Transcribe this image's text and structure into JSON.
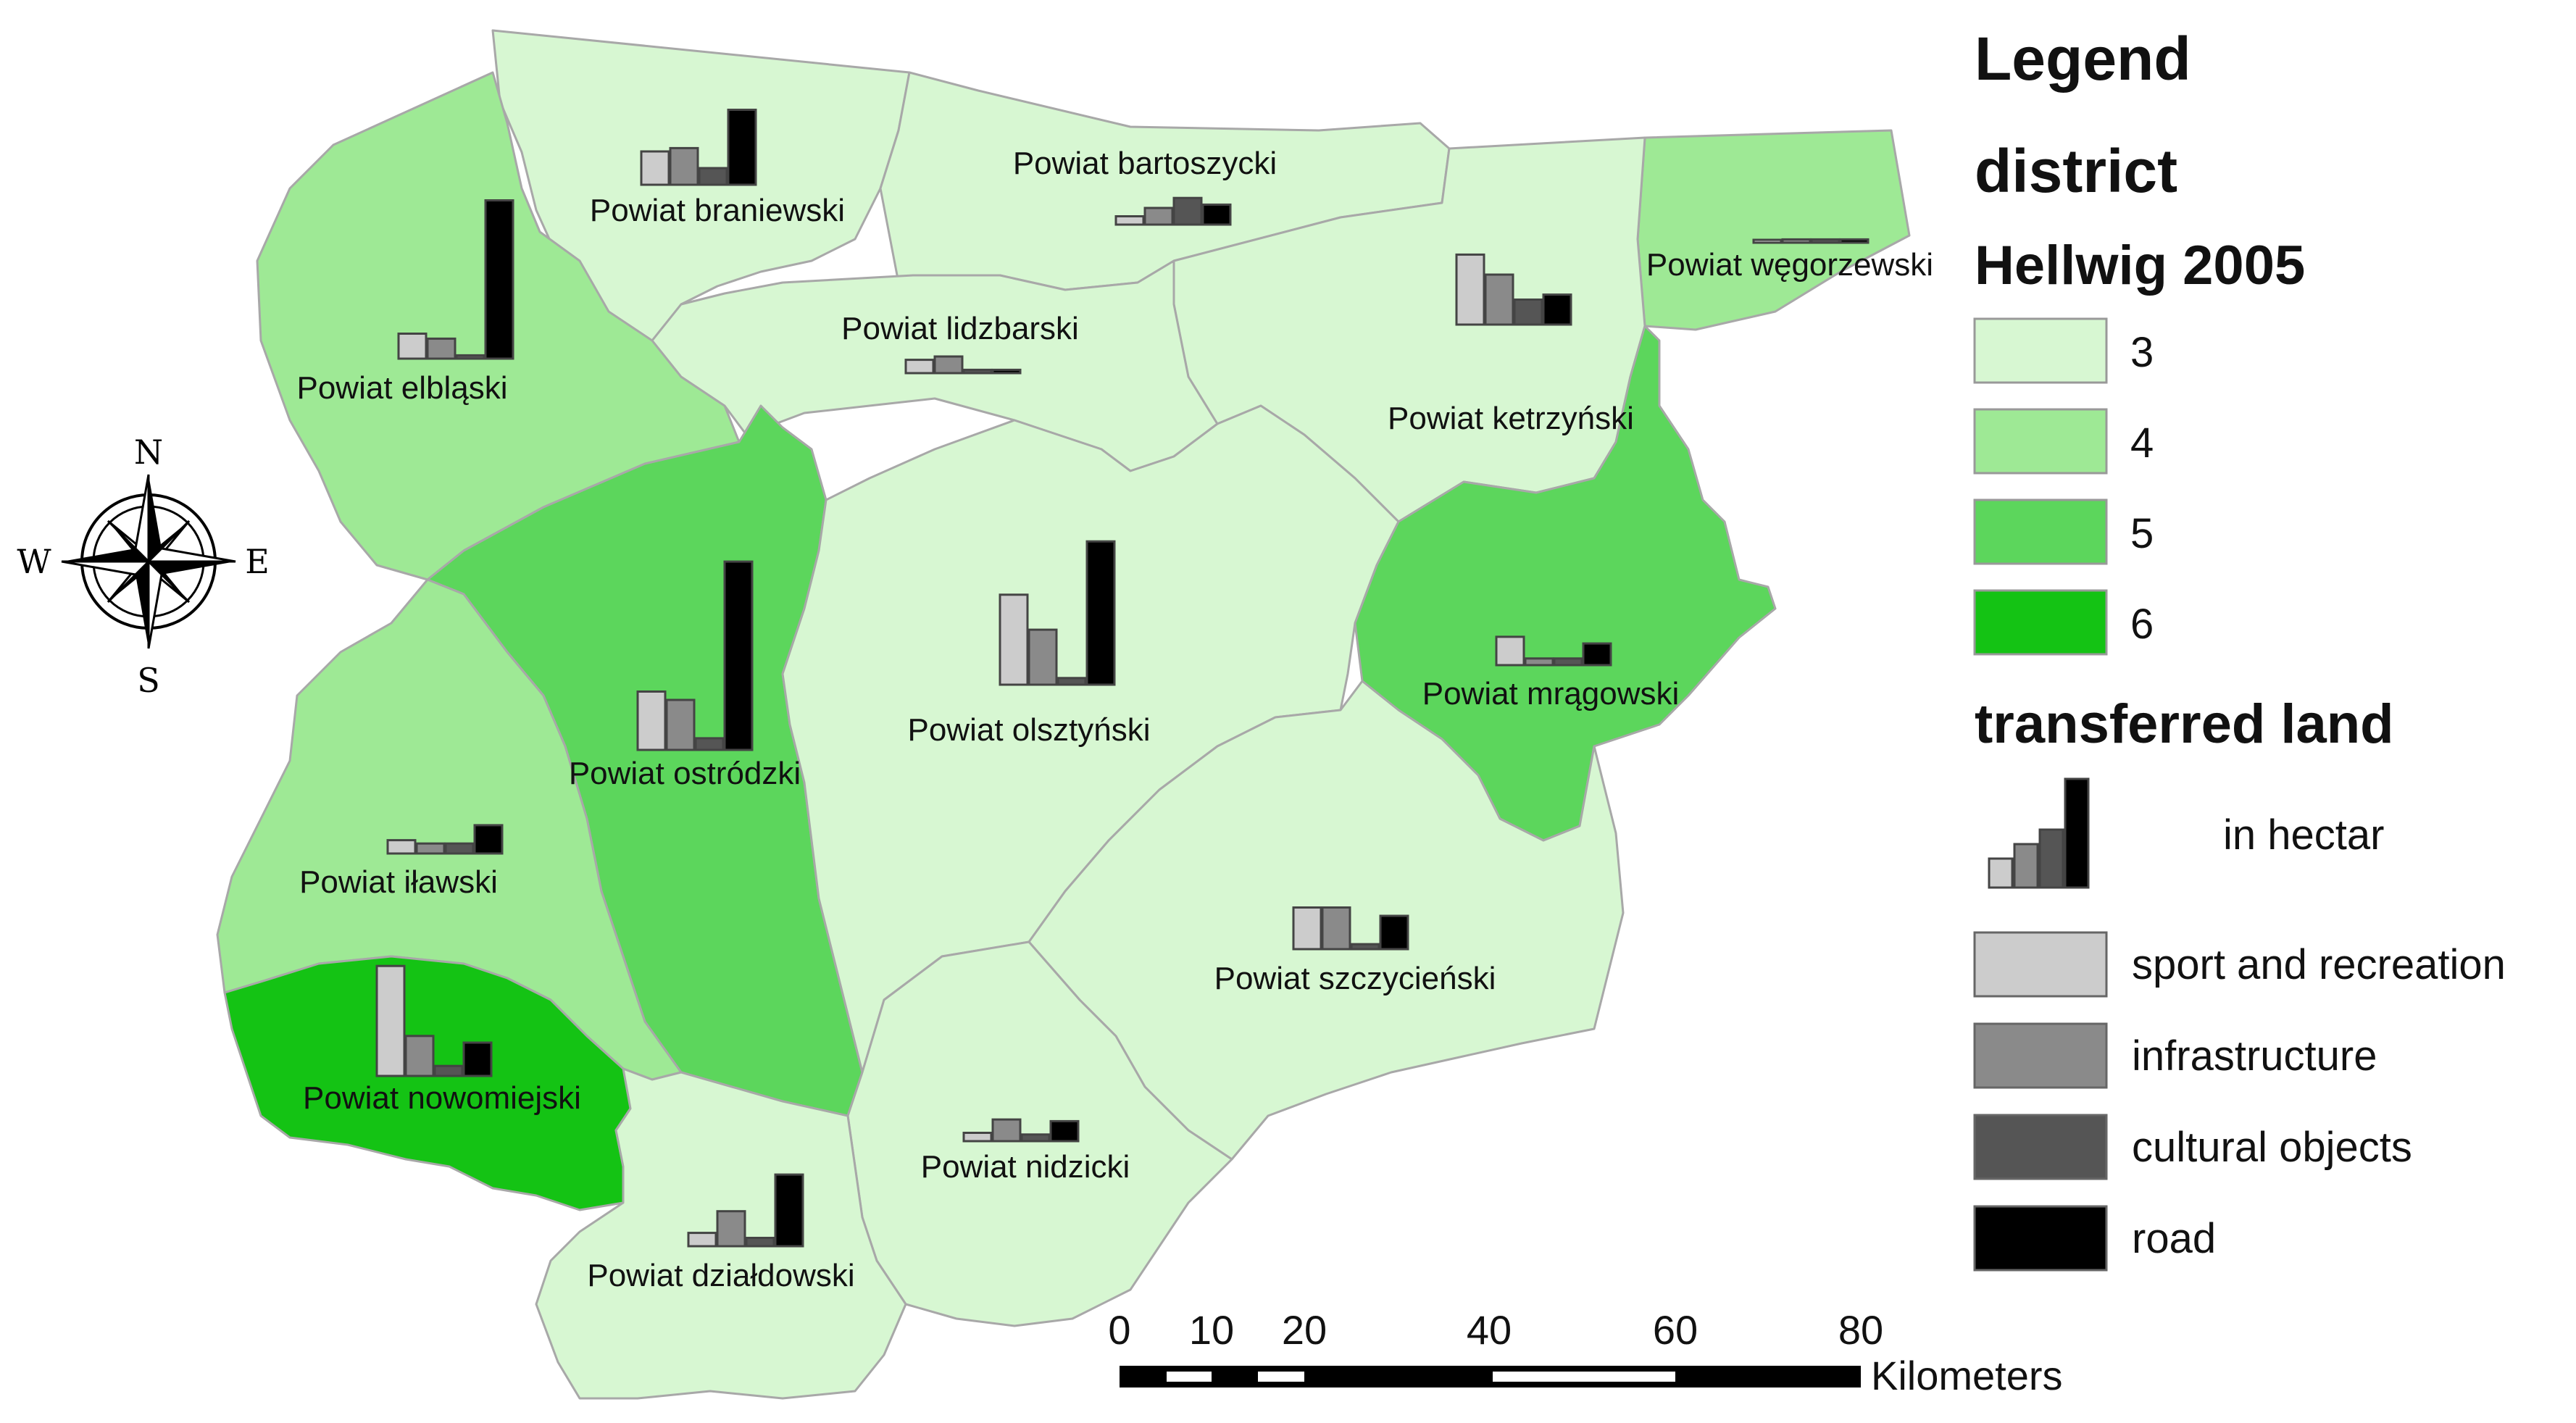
{
  "legend": {
    "title": "Legend",
    "district_title": "district",
    "hellwig_title": "Hellwig 2005",
    "classes": [
      {
        "label": "3",
        "color": "#d7f7d2"
      },
      {
        "label": "4",
        "color": "#9ee995"
      },
      {
        "label": "5",
        "color": "#5cd65c"
      },
      {
        "label": "6",
        "color": "#14c314"
      }
    ],
    "transferred_title": "transferred land",
    "unit_label": "in hectar",
    "categories": [
      {
        "label": "sport and  recreation",
        "color": "#cccccc"
      },
      {
        "label": "infrastructure",
        "color": "#8a8a8a"
      },
      {
        "label": "cultural objects",
        "color": "#555555"
      },
      {
        "label": "road",
        "color": "#000000"
      }
    ]
  },
  "compass": {
    "n": "N",
    "s": "S",
    "e": "E",
    "w": "W"
  },
  "scale_bar": {
    "ticks": [
      "0",
      "10",
      "20",
      "40",
      "60",
      "80"
    ],
    "unit": "Kilometers"
  },
  "districts": [
    {
      "id": "braniewski",
      "label": "Powiat braniewski",
      "class": 3
    },
    {
      "id": "bartoszycki",
      "label": "Powiat bartoszycki",
      "class": 3
    },
    {
      "id": "wegorzewski",
      "label": "Powiat węgorzewski",
      "class": 4
    },
    {
      "id": "elblaski",
      "label": "Powiat elbląski",
      "class": 4
    },
    {
      "id": "lidzbarski",
      "label": "Powiat lidzbarski",
      "class": 3
    },
    {
      "id": "ketrzynski",
      "label": "Powiat ketrzyński",
      "class": 3
    },
    {
      "id": "ostrodzki",
      "label": "Powiat ostródzki",
      "class": 5
    },
    {
      "id": "olsztynski",
      "label": "Powiat olsztyński",
      "class": 3
    },
    {
      "id": "mragowski",
      "label": "Powiat mrągowski",
      "class": 5
    },
    {
      "id": "ilawski",
      "label": "Powiat iławski",
      "class": 4
    },
    {
      "id": "szczycienski",
      "label": "Powiat szczycieński",
      "class": 3
    },
    {
      "id": "nowomiejski",
      "label": "Powiat nowomiejski",
      "class": 6
    },
    {
      "id": "nidzicki",
      "label": "Powiat nidzicki",
      "class": 3
    },
    {
      "id": "dzialdowski",
      "label": "Powiat działdowski",
      "class": 3
    }
  ],
  "transferred_land": {
    "note": "relative bar heights (sport, infrastructure, cultural, road)",
    "values": {
      "braniewski": [
        0.2,
        0.22,
        0.1,
        0.45
      ],
      "elblaski": [
        0.15,
        0.12,
        0.02,
        0.95
      ],
      "bartoszycki": [
        0.05,
        0.1,
        0.16,
        0.12
      ],
      "wegorzewski": [
        0.01,
        0.02,
        0.02,
        0.02
      ],
      "lidzbarski": [
        0.08,
        0.1,
        0.02,
        0.02
      ],
      "ketrzynski": [
        0.42,
        0.3,
        0.15,
        0.18
      ],
      "ostrodzki": [
        0.35,
        0.3,
        0.07,
        1.13
      ],
      "olsztynski": [
        0.54,
        0.33,
        0.04,
        0.86
      ],
      "mragowski": [
        0.17,
        0.04,
        0.04,
        0.13
      ],
      "ilawski": [
        0.08,
        0.06,
        0.06,
        0.17
      ],
      "szczycienski": [
        0.25,
        0.25,
        0.03,
        0.2
      ],
      "nowomiejski": [
        0.66,
        0.24,
        0.06,
        0.2
      ],
      "nidzicki": [
        0.05,
        0.13,
        0.04,
        0.12
      ],
      "dzialdowski": [
        0.08,
        0.21,
        0.05,
        0.43
      ]
    }
  }
}
